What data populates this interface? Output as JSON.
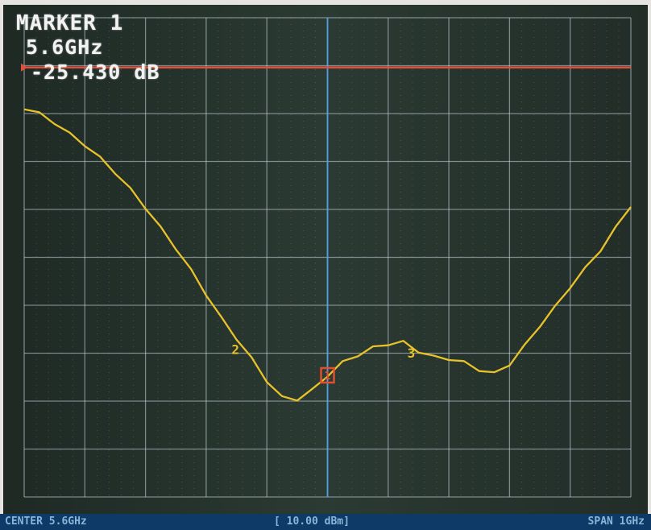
{
  "marker": {
    "title": "MARKER 1",
    "frequency": "5.6GHz",
    "value": "-25.430 dB"
  },
  "footer": {
    "center": "CENTER 5.6GHz",
    "reference": "[ 10.00 dBm]",
    "span": "SPAN 1GHz"
  },
  "colors": {
    "screen": "#2a3630",
    "grid": "#c8d2dc",
    "trace": "#e8c22a",
    "reference_line": "#e0503a",
    "marker_box": "#e05030",
    "footer": "#0d3a66"
  },
  "chart_data": {
    "type": "line",
    "title": "",
    "xlabel": "",
    "ylabel": "",
    "xlim": [
      5.1,
      6.1
    ],
    "ylim": [
      -13,
      0
    ],
    "grid": true,
    "series": [
      {
        "x": [
          5.1,
          5.125,
          5.15,
          5.175,
          5.2,
          5.225,
          5.25,
          5.275,
          5.3,
          5.325,
          5.35,
          5.375,
          5.4,
          5.425,
          5.45,
          5.475,
          5.5,
          5.525,
          5.55,
          5.575,
          5.6,
          5.625,
          5.65,
          5.675,
          5.7,
          5.725,
          5.75,
          5.775,
          5.8,
          5.825,
          5.85,
          5.875,
          5.9,
          5.925,
          5.95,
          5.975,
          6.0,
          6.025,
          6.05,
          6.075,
          6.1
        ],
        "values": [
          -2.45,
          -2.6,
          -2.85,
          -3.15,
          -3.45,
          -3.8,
          -4.2,
          -4.65,
          -5.15,
          -5.7,
          -6.25,
          -6.85,
          -7.5,
          -8.15,
          -8.7,
          -9.25,
          -9.85,
          -10.3,
          -10.35,
          -10.1,
          -9.7,
          -9.35,
          -9.15,
          -8.95,
          -8.85,
          -8.8,
          -9.05,
          -9.2,
          -9.25,
          -9.35,
          -9.55,
          -9.65,
          -9.4,
          -8.9,
          -8.35,
          -7.85,
          -7.3,
          -6.8,
          -6.3,
          -5.7,
          -5.1
        ]
      }
    ],
    "reference_line": {
      "y": -1.35
    },
    "markers": [
      {
        "label": "1",
        "x": 5.6,
        "y": -9.7
      },
      {
        "label": "2",
        "x": 5.455,
        "y": -8.9
      },
      {
        "label": "3",
        "x": 5.745,
        "y": -9.0
      }
    ],
    "footer_labels": [
      "CENTER 5.6GHz",
      "[ 10.00 dBm]",
      "SPAN 1GHz"
    ]
  }
}
